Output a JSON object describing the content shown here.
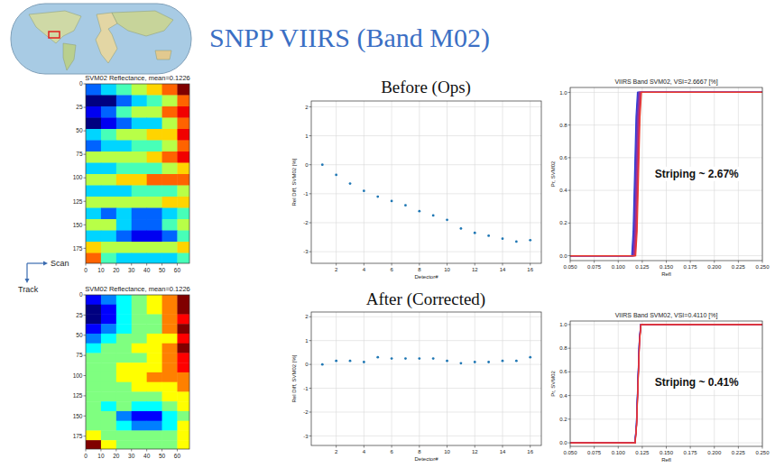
{
  "header": {
    "title": "SNPP VIIRS (Band M02)",
    "before_label": "Before (Ops)",
    "after_label": "After (Corrected)"
  },
  "orientation": {
    "scan": "Scan",
    "track": "Track"
  },
  "chart_data": [
    {
      "type": "heatmap",
      "title": "SVM02 Reflectance, mean=0.1226",
      "xlim": [
        0,
        68
      ],
      "ylim": [
        191,
        0
      ],
      "xticks": [
        0,
        10,
        20,
        30,
        40,
        50,
        60
      ],
      "yticks": [
        0,
        25,
        50,
        75,
        100,
        125,
        150,
        175
      ],
      "x_edges": [
        0,
        10,
        20,
        30,
        40,
        50,
        60,
        70
      ],
      "y_edges": [
        0,
        12,
        24,
        36,
        48,
        60,
        72,
        84,
        96,
        108,
        120,
        132,
        144,
        156,
        168,
        180,
        192
      ],
      "cells": [
        [
          0.11,
          0.115,
          0.12,
          0.125,
          0.13,
          0.135,
          0.145
        ],
        [
          0.1,
          0.1,
          0.11,
          0.115,
          0.12,
          0.125,
          0.135
        ],
        [
          0.105,
          0.11,
          0.12,
          0.125,
          0.125,
          0.135,
          0.14
        ],
        [
          0.1,
          0.105,
          0.11,
          0.115,
          0.115,
          0.125,
          0.135
        ],
        [
          0.115,
          0.12,
          0.125,
          0.125,
          0.13,
          0.13,
          0.14
        ],
        [
          0.11,
          0.115,
          0.115,
          0.12,
          0.12,
          0.125,
          0.135
        ],
        [
          0.125,
          0.125,
          0.125,
          0.125,
          0.13,
          0.135,
          0.14
        ],
        [
          0.115,
          0.115,
          0.12,
          0.12,
          0.12,
          0.125,
          0.13
        ],
        [
          0.125,
          0.125,
          0.13,
          0.13,
          0.135,
          0.135,
          0.135
        ],
        [
          0.115,
          0.115,
          0.115,
          0.12,
          0.12,
          0.12,
          0.125
        ],
        [
          0.125,
          0.125,
          0.125,
          0.125,
          0.125,
          0.13,
          0.13
        ],
        [
          0.115,
          0.11,
          0.115,
          0.11,
          0.11,
          0.115,
          0.12
        ],
        [
          0.125,
          0.125,
          0.115,
          0.11,
          0.11,
          0.12,
          0.125
        ],
        [
          0.115,
          0.115,
          0.11,
          0.105,
          0.105,
          0.11,
          0.12
        ],
        [
          0.13,
          0.125,
          0.125,
          0.125,
          0.125,
          0.125,
          0.13
        ],
        [
          0.135,
          0.12,
          0.115,
          0.115,
          0.115,
          0.115,
          0.12
        ]
      ]
    },
    {
      "type": "scatter",
      "x_label": "Detector#",
      "y_label": "Rel Diff, SVM02 [%]",
      "x": [
        1,
        2,
        3,
        4,
        5,
        6,
        7,
        8,
        9,
        10,
        11,
        12,
        13,
        14,
        15,
        16
      ],
      "values": [
        0.0,
        -0.35,
        -0.65,
        -0.9,
        -1.1,
        -1.25,
        -1.4,
        -1.6,
        -1.75,
        -1.9,
        -2.2,
        -2.35,
        -2.45,
        -2.55,
        -2.65,
        -2.6
      ],
      "xlim": [
        0.2,
        16.8
      ],
      "ylim": [
        -3.4,
        2.2
      ],
      "xticks": [
        2,
        4,
        6,
        8,
        10,
        12,
        14,
        16
      ],
      "yticks": [
        -3,
        -2,
        -1,
        0,
        1,
        2
      ],
      "grid": true,
      "color": "#1f77b4",
      "marker": "dot"
    },
    {
      "type": "line",
      "title": "VIIRS Band SVM02, VSI=2.6667 [%]",
      "x_label": "Refl",
      "y_label": "Pr, SVM02",
      "annotation": "Striping ~ 2.67%",
      "xlim": [
        0.05,
        0.25
      ],
      "ylim": [
        -0.03,
        1.03
      ],
      "xticks": [
        {
          "value": 0.05,
          "label": "0.050"
        },
        {
          "value": 0.075,
          "label": "0.075"
        },
        {
          "value": 0.1,
          "label": "0.100"
        },
        {
          "value": 0.125,
          "label": "0.125"
        },
        {
          "value": 0.15,
          "label": "0.150"
        },
        {
          "value": 0.175,
          "label": "0.175"
        },
        {
          "value": 0.2,
          "label": "0.200"
        },
        {
          "value": 0.225,
          "label": "0.225"
        },
        {
          "value": 0.25,
          "label": "0.250"
        }
      ],
      "yticks": [
        {
          "value": 0,
          "label": "0.0"
        },
        0.2,
        0.4,
        0.6,
        0.8,
        {
          "value": 1,
          "label": "1.0"
        }
      ],
      "grid": true,
      "series": [
        {
          "color": "#1f3fd6",
          "x": [
            0.05,
            0.114,
            0.1155,
            0.117,
            0.1185,
            0.12,
            0.25
          ],
          "values": [
            0,
            0,
            0.15,
            0.5,
            0.85,
            1,
            1
          ]
        },
        {
          "color": "#3b3ad0",
          "x": [
            0.05,
            0.1146,
            0.1161,
            0.1176,
            0.1191,
            0.1206,
            0.25
          ],
          "values": [
            0,
            0,
            0.15,
            0.5,
            0.85,
            1,
            1
          ]
        },
        {
          "color": "#5a36c0",
          "x": [
            0.05,
            0.1152,
            0.1167,
            0.1182,
            0.1197,
            0.1212,
            0.25
          ],
          "values": [
            0,
            0,
            0.15,
            0.5,
            0.85,
            1,
            1
          ]
        },
        {
          "color": "#7a32ac",
          "x": [
            0.05,
            0.1158,
            0.1173,
            0.1188,
            0.1203,
            0.1218,
            0.25
          ],
          "values": [
            0,
            0,
            0.15,
            0.5,
            0.85,
            1,
            1
          ]
        },
        {
          "color": "#982e94",
          "x": [
            0.05,
            0.1164,
            0.1179,
            0.1194,
            0.1209,
            0.1224,
            0.25
          ],
          "values": [
            0,
            0,
            0.15,
            0.5,
            0.85,
            1,
            1
          ]
        },
        {
          "color": "#b52c78",
          "x": [
            0.05,
            0.117,
            0.1185,
            0.12,
            0.1215,
            0.123,
            0.25
          ],
          "values": [
            0,
            0,
            0.15,
            0.5,
            0.85,
            1,
            1
          ]
        },
        {
          "color": "#d22c58",
          "x": [
            0.05,
            0.1176,
            0.1191,
            0.1206,
            0.1221,
            0.1236,
            0.25
          ],
          "values": [
            0,
            0,
            0.15,
            0.5,
            0.85,
            1,
            1
          ]
        },
        {
          "color": "#ea3a2a",
          "x": [
            0.05,
            0.1182,
            0.1197,
            0.1212,
            0.1227,
            0.1242,
            0.25
          ],
          "values": [
            0,
            0,
            0.15,
            0.5,
            0.85,
            1,
            1
          ]
        }
      ]
    },
    {
      "type": "heatmap",
      "title": "SVM02 Reflectance, mean=0.1226",
      "xlim": [
        0,
        68
      ],
      "ylim": [
        191,
        0
      ],
      "xticks": [
        0,
        10,
        20,
        30,
        40,
        50,
        60
      ],
      "yticks": [
        0,
        25,
        50,
        75,
        100,
        125,
        150,
        175
      ],
      "x_edges": [
        0,
        10,
        20,
        30,
        40,
        50,
        60,
        70
      ],
      "y_edges": [
        0,
        12,
        24,
        36,
        48,
        60,
        72,
        84,
        96,
        108,
        120,
        132,
        144,
        156,
        168,
        180,
        192
      ],
      "cells": [
        [
          0.105,
          0.11,
          0.115,
          0.12,
          0.125,
          0.13,
          0.14
        ],
        [
          0.1,
          0.105,
          0.115,
          0.12,
          0.125,
          0.13,
          0.14
        ],
        [
          0.1,
          0.105,
          0.115,
          0.12,
          0.12,
          0.13,
          0.135
        ],
        [
          0.105,
          0.11,
          0.115,
          0.12,
          0.12,
          0.13,
          0.14
        ],
        [
          0.11,
          0.115,
          0.12,
          0.12,
          0.125,
          0.125,
          0.135
        ],
        [
          0.115,
          0.12,
          0.12,
          0.125,
          0.125,
          0.13,
          0.14
        ],
        [
          0.12,
          0.12,
          0.12,
          0.12,
          0.125,
          0.13,
          0.135
        ],
        [
          0.12,
          0.12,
          0.125,
          0.125,
          0.125,
          0.13,
          0.135
        ],
        [
          0.12,
          0.12,
          0.125,
          0.125,
          0.13,
          0.13,
          0.13
        ],
        [
          0.12,
          0.12,
          0.12,
          0.125,
          0.125,
          0.125,
          0.13
        ],
        [
          0.12,
          0.12,
          0.12,
          0.12,
          0.12,
          0.125,
          0.125
        ],
        [
          0.12,
          0.115,
          0.12,
          0.115,
          0.115,
          0.12,
          0.125
        ],
        [
          0.12,
          0.12,
          0.11,
          0.105,
          0.105,
          0.115,
          0.12
        ],
        [
          0.12,
          0.12,
          0.115,
          0.11,
          0.11,
          0.115,
          0.125
        ],
        [
          0.125,
          0.12,
          0.12,
          0.12,
          0.12,
          0.12,
          0.125
        ],
        [
          0.14,
          0.125,
          0.12,
          0.12,
          0.12,
          0.12,
          0.125
        ]
      ]
    },
    {
      "type": "scatter",
      "x_label": "Detector#",
      "y_label": "Rel Diff, SVM02 [%]",
      "x": [
        1,
        2,
        3,
        4,
        5,
        6,
        7,
        8,
        9,
        10,
        11,
        12,
        13,
        14,
        15,
        16
      ],
      "values": [
        0.0,
        0.15,
        0.15,
        0.1,
        0.3,
        0.25,
        0.25,
        0.25,
        0.25,
        0.15,
        0.05,
        0.1,
        0.1,
        0.15,
        0.15,
        0.3
      ],
      "xlim": [
        0.2,
        16.8
      ],
      "ylim": [
        -3.4,
        2.2
      ],
      "xticks": [
        2,
        4,
        6,
        8,
        10,
        12,
        14,
        16
      ],
      "yticks": [
        -3,
        -2,
        -1,
        0,
        1,
        2
      ],
      "grid": true,
      "color": "#1f77b4",
      "marker": "dot"
    },
    {
      "type": "line",
      "title": "VIIRS Band SVM02, VSI=0.4110 [%]",
      "x_label": "Refl",
      "y_label": "Pr, SVM02",
      "annotation": "Striping ~ 0.41%",
      "xlim": [
        0.05,
        0.25
      ],
      "ylim": [
        -0.03,
        1.03
      ],
      "xticks": [
        {
          "value": 0.05,
          "label": "0.050"
        },
        {
          "value": 0.075,
          "label": "0.075"
        },
        {
          "value": 0.1,
          "label": "0.100"
        },
        {
          "value": 0.125,
          "label": "0.125"
        },
        {
          "value": 0.15,
          "label": "0.150"
        },
        {
          "value": 0.175,
          "label": "0.175"
        },
        {
          "value": 0.2,
          "label": "0.200"
        },
        {
          "value": 0.225,
          "label": "0.225"
        },
        {
          "value": 0.25,
          "label": "0.250"
        }
      ],
      "yticks": [
        {
          "value": 0,
          "label": "0.0"
        },
        0.2,
        0.4,
        0.6,
        0.8,
        {
          "value": 1,
          "label": "1.0"
        }
      ],
      "grid": true,
      "series": [
        {
          "color": "#1f3fd6",
          "x": [
            0.05,
            0.1173,
            0.1188,
            0.1203,
            0.1218,
            0.1233,
            0.25
          ],
          "values": [
            0,
            0,
            0.15,
            0.5,
            0.85,
            1,
            1
          ]
        },
        {
          "color": "#3b3ad0",
          "x": [
            0.05,
            0.1174,
            0.1189,
            0.1204,
            0.1219,
            0.1234,
            0.25
          ],
          "values": [
            0,
            0,
            0.15,
            0.5,
            0.85,
            1,
            1
          ]
        },
        {
          "color": "#5a36c0",
          "x": [
            0.05,
            0.1174,
            0.1189,
            0.1204,
            0.1219,
            0.1234,
            0.25
          ],
          "values": [
            0,
            0,
            0.15,
            0.5,
            0.85,
            1,
            1
          ]
        },
        {
          "color": "#7a32ac",
          "x": [
            0.05,
            0.1175,
            0.119,
            0.1205,
            0.122,
            0.1235,
            0.25
          ],
          "values": [
            0,
            0,
            0.15,
            0.5,
            0.85,
            1,
            1
          ]
        },
        {
          "color": "#982e94",
          "x": [
            0.05,
            0.1175,
            0.119,
            0.1205,
            0.122,
            0.1235,
            0.25
          ],
          "values": [
            0,
            0,
            0.15,
            0.5,
            0.85,
            1,
            1
          ]
        },
        {
          "color": "#b52c78",
          "x": [
            0.05,
            0.1176,
            0.1191,
            0.1206,
            0.1221,
            0.1236,
            0.25
          ],
          "values": [
            0,
            0,
            0.15,
            0.5,
            0.85,
            1,
            1
          ]
        },
        {
          "color": "#d22c58",
          "x": [
            0.05,
            0.1176,
            0.1191,
            0.1206,
            0.1221,
            0.1236,
            0.25
          ],
          "values": [
            0,
            0,
            0.15,
            0.5,
            0.85,
            1,
            1
          ]
        },
        {
          "color": "#ea3a2a",
          "x": [
            0.05,
            0.1177,
            0.1192,
            0.1207,
            0.1222,
            0.1237,
            0.25
          ],
          "values": [
            0,
            0,
            0.15,
            0.5,
            0.85,
            1,
            1
          ]
        }
      ]
    }
  ]
}
